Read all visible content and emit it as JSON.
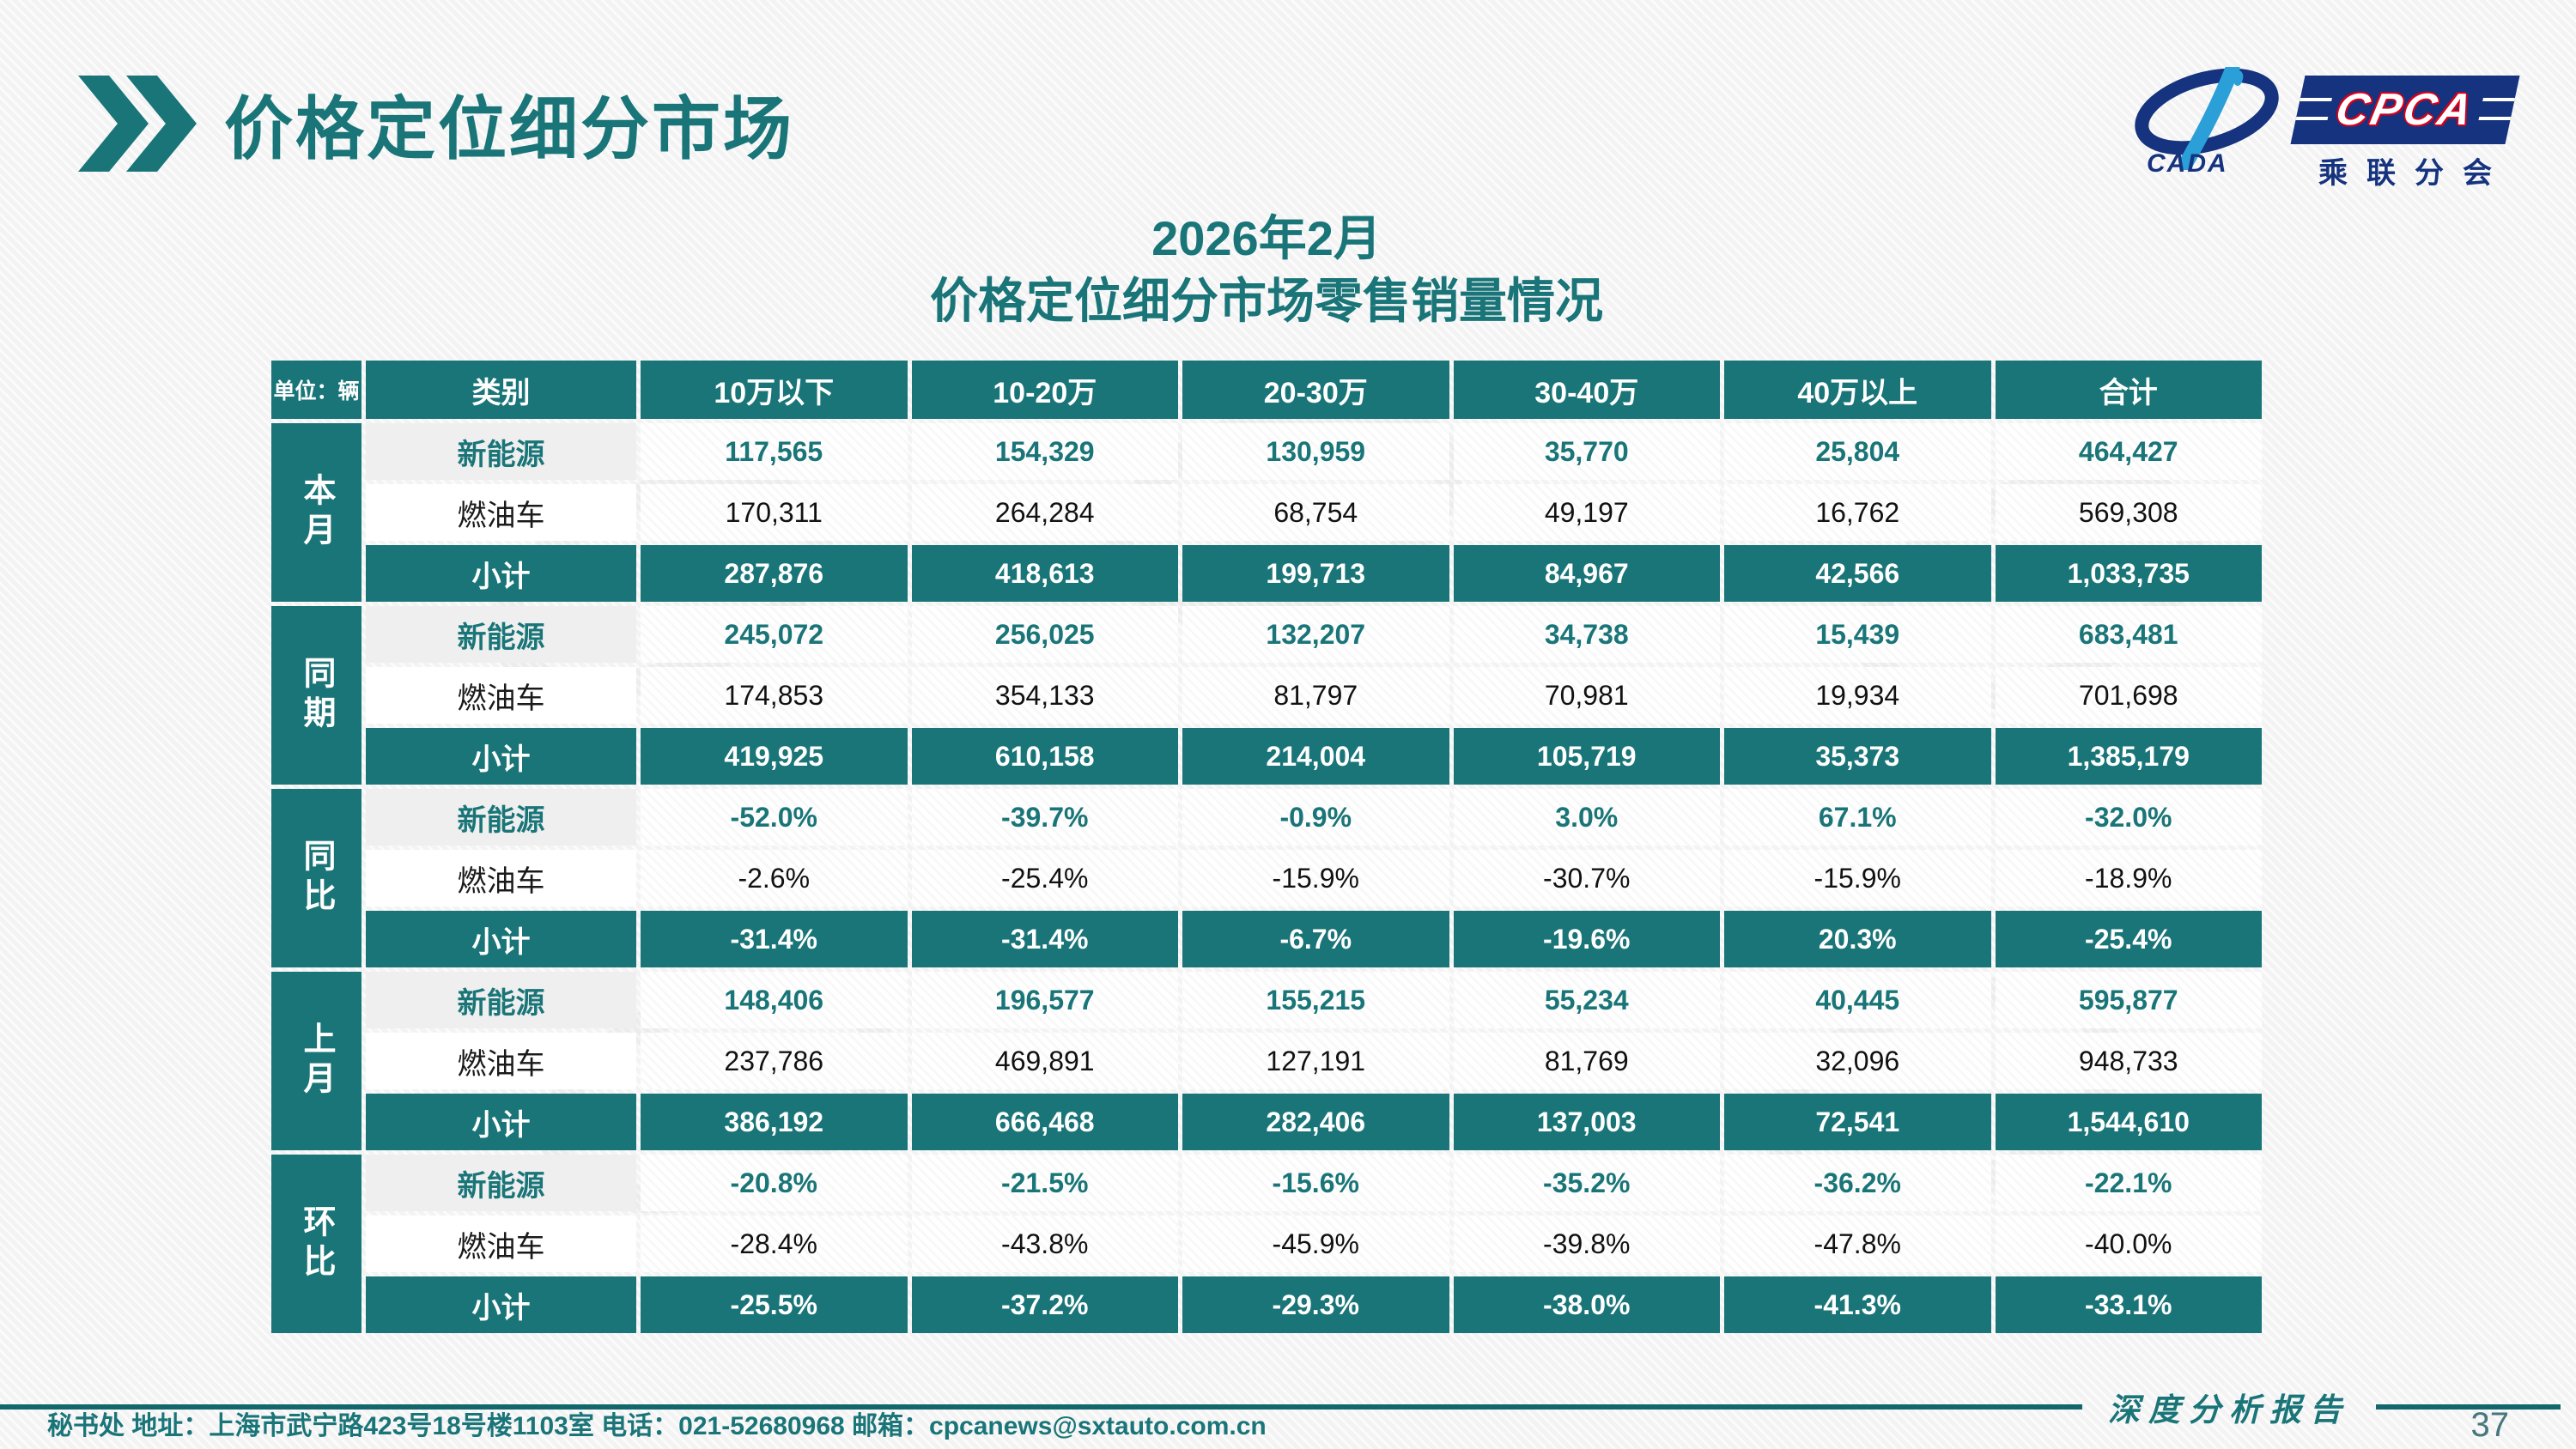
{
  "slide": {
    "title": "价格定位细分市场",
    "subtitle1": "2026年2月",
    "subtitle2": "价格定位细分市场零售销量情况",
    "report_badge": "深度分析报告",
    "page_number": "37",
    "footer": {
      "text": "秘书处   地址：上海市武宁路423号18号楼1103室  电话：021-52680968   邮箱：",
      "email": "cpcanews@sxtauto.com.cn"
    }
  },
  "logo": {
    "cada_label": "CADA",
    "cpca_label": "CPCA",
    "branch_label": "乘联分会"
  },
  "table": {
    "unit_label": "单位：辆",
    "columns": [
      "类别",
      "10万以下",
      "10-20万",
      "20-30万",
      "30-40万",
      "40万以上",
      "合计"
    ],
    "groups": [
      {
        "label": "本月",
        "rows": [
          {
            "category": "新能源",
            "type": "nev",
            "values": [
              "117,565",
              "154,329",
              "130,959",
              "35,770",
              "25,804",
              "464,427"
            ]
          },
          {
            "category": "燃油车",
            "type": "ice",
            "values": [
              "170,311",
              "264,284",
              "68,754",
              "49,197",
              "16,762",
              "569,308"
            ]
          },
          {
            "category": "小计",
            "type": "subtotal",
            "values": [
              "287,876",
              "418,613",
              "199,713",
              "84,967",
              "42,566",
              "1,033,735"
            ]
          }
        ]
      },
      {
        "label": "同期",
        "rows": [
          {
            "category": "新能源",
            "type": "nev",
            "values": [
              "245,072",
              "256,025",
              "132,207",
              "34,738",
              "15,439",
              "683,481"
            ]
          },
          {
            "category": "燃油车",
            "type": "ice",
            "values": [
              "174,853",
              "354,133",
              "81,797",
              "70,981",
              "19,934",
              "701,698"
            ]
          },
          {
            "category": "小计",
            "type": "subtotal",
            "values": [
              "419,925",
              "610,158",
              "214,004",
              "105,719",
              "35,373",
              "1,385,179"
            ]
          }
        ]
      },
      {
        "label": "同比",
        "rows": [
          {
            "category": "新能源",
            "type": "nev",
            "values": [
              "-52.0%",
              "-39.7%",
              "-0.9%",
              "3.0%",
              "67.1%",
              "-32.0%"
            ]
          },
          {
            "category": "燃油车",
            "type": "ice",
            "values": [
              "-2.6%",
              "-25.4%",
              "-15.9%",
              "-30.7%",
              "-15.9%",
              "-18.9%"
            ]
          },
          {
            "category": "小计",
            "type": "subtotal",
            "values": [
              "-31.4%",
              "-31.4%",
              "-6.7%",
              "-19.6%",
              "20.3%",
              "-25.4%"
            ]
          }
        ]
      },
      {
        "label": "上月",
        "rows": [
          {
            "category": "新能源",
            "type": "nev",
            "values": [
              "148,406",
              "196,577",
              "155,215",
              "55,234",
              "40,445",
              "595,877"
            ]
          },
          {
            "category": "燃油车",
            "type": "ice",
            "values": [
              "237,786",
              "469,891",
              "127,191",
              "81,769",
              "32,096",
              "948,733"
            ]
          },
          {
            "category": "小计",
            "type": "subtotal",
            "values": [
              "386,192",
              "666,468",
              "282,406",
              "137,003",
              "72,541",
              "1,544,610"
            ]
          }
        ]
      },
      {
        "label": "环比",
        "rows": [
          {
            "category": "新能源",
            "type": "nev",
            "values": [
              "-20.8%",
              "-21.5%",
              "-15.6%",
              "-35.2%",
              "-36.2%",
              "-22.1%"
            ]
          },
          {
            "category": "燃油车",
            "type": "ice",
            "values": [
              "-28.4%",
              "-43.8%",
              "-45.9%",
              "-39.8%",
              "-47.8%",
              "-40.0%"
            ]
          },
          {
            "category": "小计",
            "type": "subtotal",
            "values": [
              "-25.5%",
              "-37.2%",
              "-29.3%",
              "-38.0%",
              "-41.3%",
              "-33.1%"
            ]
          }
        ]
      }
    ]
  },
  "colors": {
    "teal": "#1A7578",
    "teal_dark": "#11676C",
    "logo_blue": "#15337E",
    "logo_cyan": "#2B9FD8",
    "logo_red": "#D6001C"
  }
}
